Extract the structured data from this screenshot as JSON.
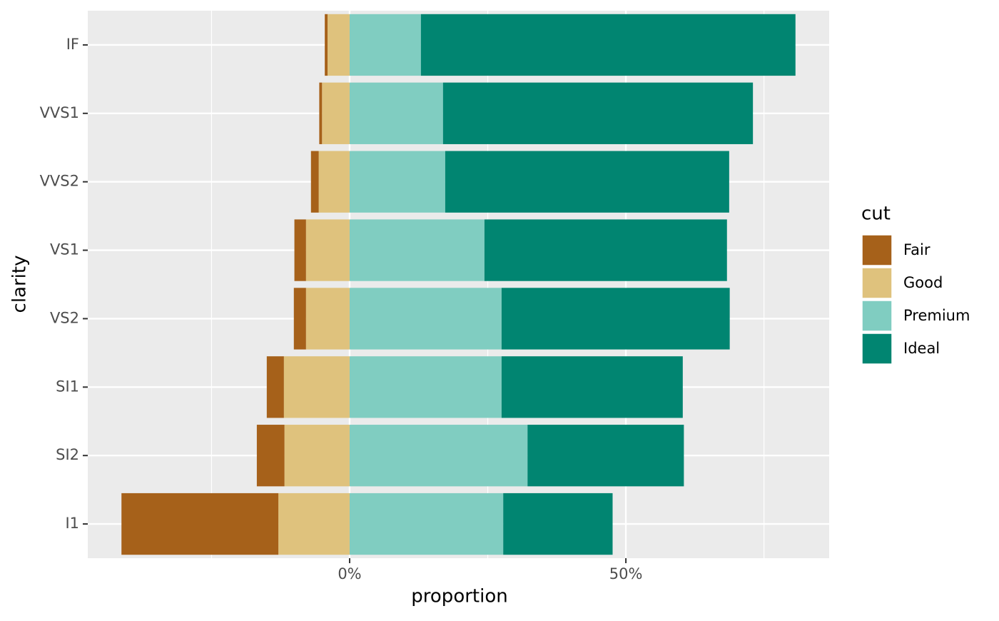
{
  "chart_data": {
    "type": "diverging-stacked-bar",
    "orientation": "horizontal",
    "x_label": "proportion",
    "y_label": "clarity",
    "legend_title": "cut",
    "legend_position": "right",
    "categories": [
      "I1",
      "SI2",
      "SI1",
      "VS2",
      "VS1",
      "VVS2",
      "VVS1",
      "IF"
    ],
    "series": [
      {
        "name": "Fair",
        "color": "#a6611a",
        "values": [
          -28.4,
          -5.0,
          -3.1,
          -2.2,
          -2.1,
          -1.4,
          -0.5,
          -0.5
        ]
      },
      {
        "name": "Good",
        "color": "#dfc27d",
        "values": [
          -12.9,
          -11.8,
          -11.9,
          -7.9,
          -7.9,
          -5.6,
          -5.0,
          -4.0
        ]
      },
      {
        "name": "Premium",
        "color": "#80cdc1",
        "values": [
          27.8,
          32.2,
          27.5,
          27.5,
          24.4,
          17.3,
          16.9,
          12.9
        ]
      },
      {
        "name": "Ideal",
        "color": "#018571",
        "values": [
          19.8,
          28.3,
          32.8,
          41.3,
          43.9,
          51.4,
          56.1,
          67.8
        ]
      }
    ],
    "xlim": [
      -47.4,
      86.8
    ],
    "xticks": [
      {
        "value": 0,
        "label": "0%"
      },
      {
        "value": 50,
        "label": "50%"
      }
    ],
    "minor_gridlines": [
      -25,
      25,
      75
    ],
    "grid": true
  }
}
